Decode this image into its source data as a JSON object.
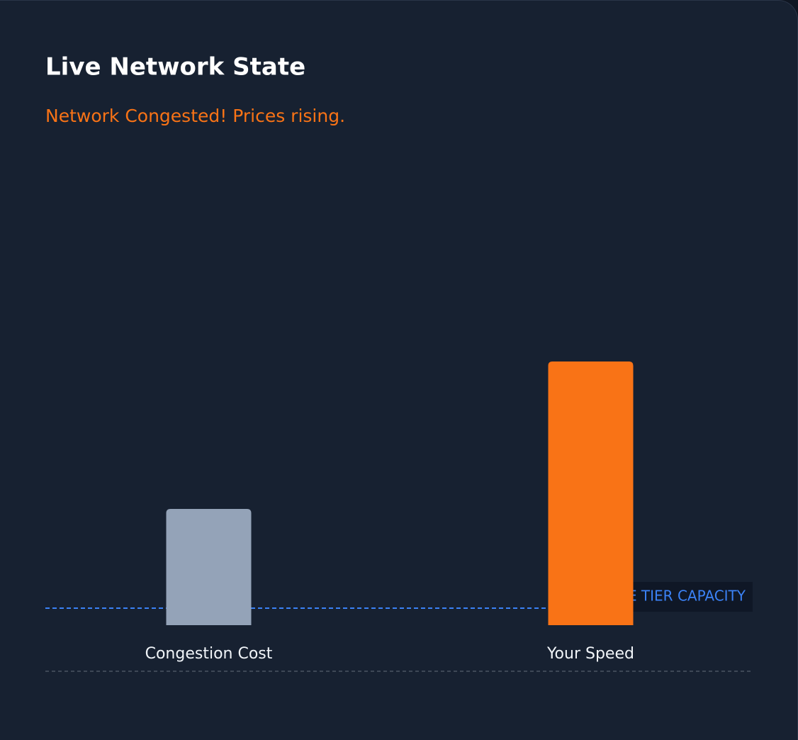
{
  "chart_data": {
    "type": "bar",
    "title": "Live Network State",
    "subtitle": "Network Congested! Prices rising.",
    "categories": [
      "Congestion Cost",
      "Your Speed"
    ],
    "values": [
      41,
      93
    ],
    "colors": [
      "#94a3b8",
      "#f97316"
    ],
    "ylim": [
      0,
      100
    ],
    "reference_line": {
      "value": 6,
      "label": "E TIER CAPACITY",
      "color": "#3b82f6"
    }
  }
}
